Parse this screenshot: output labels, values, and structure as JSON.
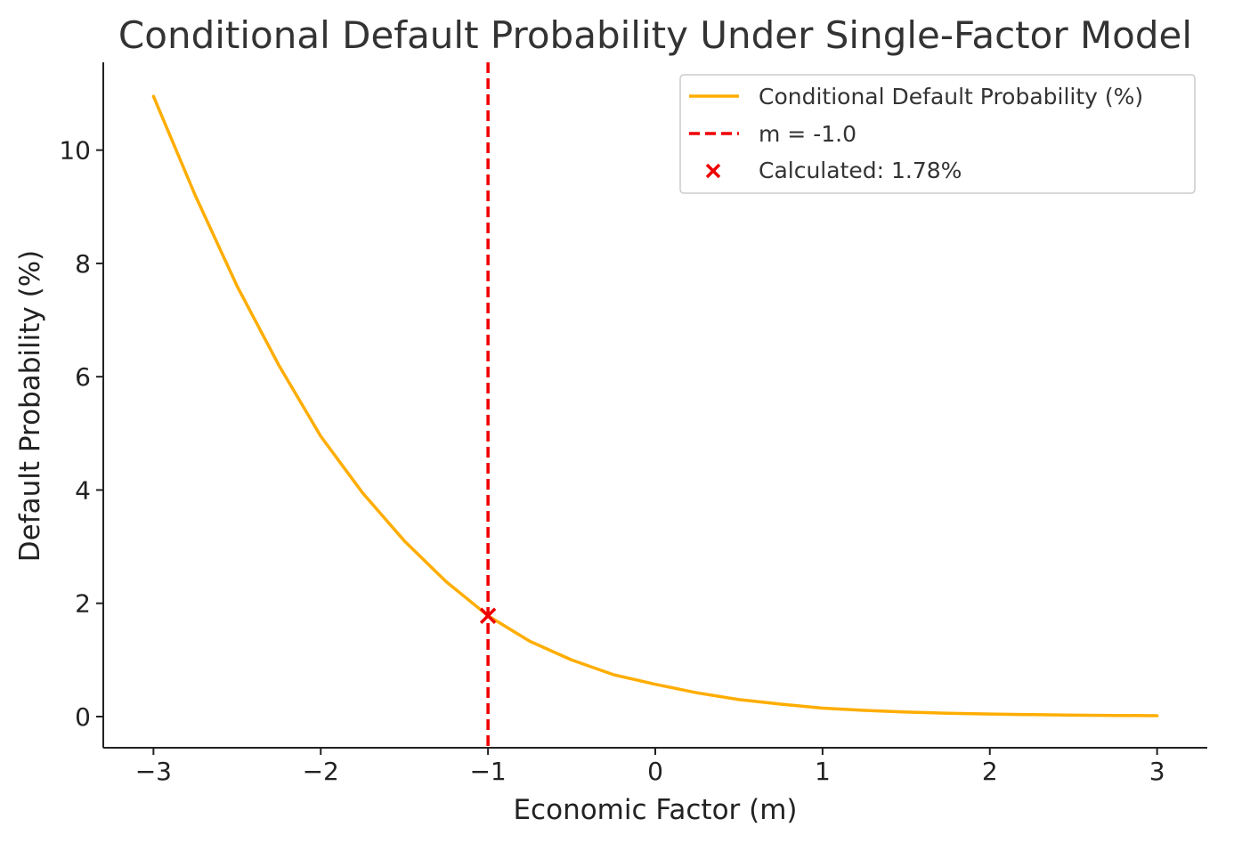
{
  "chart_data": {
    "type": "line",
    "title": "Conditional Default Probability Under Single-Factor Model",
    "xlabel": "Economic Factor (m)",
    "ylabel": "Default Probability (%)",
    "xlim": [
      -3.3,
      3.3
    ],
    "ylim": [
      -0.55,
      11.55
    ],
    "x_ticks": [
      -3,
      -2,
      -1,
      0,
      1,
      2,
      3
    ],
    "x_tick_labels": [
      "−3",
      "−2",
      "−1",
      "0",
      "1",
      "2",
      "3"
    ],
    "y_ticks": [
      0,
      2,
      4,
      6,
      8,
      10
    ],
    "y_tick_labels": [
      "0",
      "2",
      "4",
      "6",
      "8",
      "10"
    ],
    "grid": false,
    "legend_position": "top-right",
    "series": [
      {
        "name": "Conditional Default Probability (%)",
        "style": "line",
        "color": "#FFAD00",
        "x": [
          -3.0,
          -2.75,
          -2.5,
          -2.25,
          -2.0,
          -1.75,
          -1.5,
          -1.25,
          -1.0,
          -0.75,
          -0.5,
          -0.25,
          0.0,
          0.25,
          0.5,
          0.75,
          1.0,
          1.25,
          1.5,
          1.75,
          2.0,
          2.25,
          2.5,
          2.75,
          3.0
        ],
        "y": [
          10.95,
          9.2,
          7.6,
          6.2,
          4.95,
          3.95,
          3.1,
          2.38,
          1.78,
          1.33,
          1.0,
          0.74,
          0.57,
          0.42,
          0.3,
          0.22,
          0.15,
          0.11,
          0.08,
          0.06,
          0.045,
          0.035,
          0.025,
          0.02,
          0.015
        ]
      },
      {
        "name": "m = -1.0",
        "style": "vline",
        "color": "#EE0000",
        "x_value": -1.0
      },
      {
        "name": "Calculated: 1.78%",
        "style": "marker",
        "color": "#EE0000",
        "x": [
          -1.0
        ],
        "y": [
          1.78
        ]
      }
    ]
  }
}
